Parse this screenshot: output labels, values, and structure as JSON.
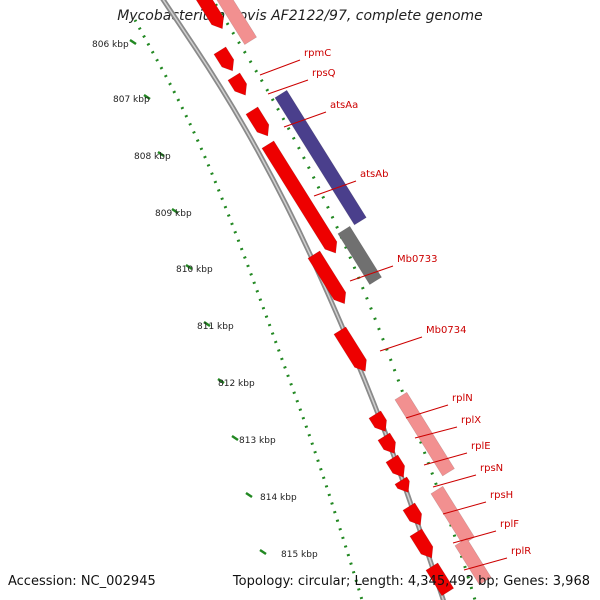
{
  "title": "Mycobacterium bovis AF2122/97, complete genome",
  "footer": {
    "accession": "Accession: NC_002945",
    "topology": "Topology: circular",
    "length": "Length: 4,345,492 bp",
    "genes": "Genes: 3,968"
  },
  "colors": {
    "gene": "#ee0000",
    "gene_faint": "#f29090",
    "purple_feature": "#4a3f8c",
    "gray_feature": "#707070",
    "backbone": "#8a8a8a",
    "scale": "#228822",
    "label": "#cc0000"
  },
  "scale": {
    "ticks": [
      {
        "kbp": 806,
        "label": "806 kbp"
      },
      {
        "kbp": 807,
        "label": "807 kbp"
      },
      {
        "kbp": 808,
        "label": "808 kbp"
      },
      {
        "kbp": 809,
        "label": "809 kbp"
      },
      {
        "kbp": 810,
        "label": "810 kbp"
      },
      {
        "kbp": 811,
        "label": "811 kbp"
      },
      {
        "kbp": 812,
        "label": "812 kbp"
      },
      {
        "kbp": 813,
        "label": "813 kbp"
      },
      {
        "kbp": 814,
        "label": "814 kbp"
      },
      {
        "kbp": 815,
        "label": "815 kbp"
      }
    ]
  },
  "genes": [
    {
      "name": "rpmC"
    },
    {
      "name": "rpsQ"
    },
    {
      "name": "atsAa"
    },
    {
      "name": "atsAb"
    },
    {
      "name": "Mb0733"
    },
    {
      "name": "Mb0734"
    },
    {
      "name": "rplN"
    },
    {
      "name": "rplX"
    },
    {
      "name": "rplE"
    },
    {
      "name": "rpsN"
    },
    {
      "name": "rpsH"
    },
    {
      "name": "rplF"
    },
    {
      "name": "rplR"
    }
  ]
}
